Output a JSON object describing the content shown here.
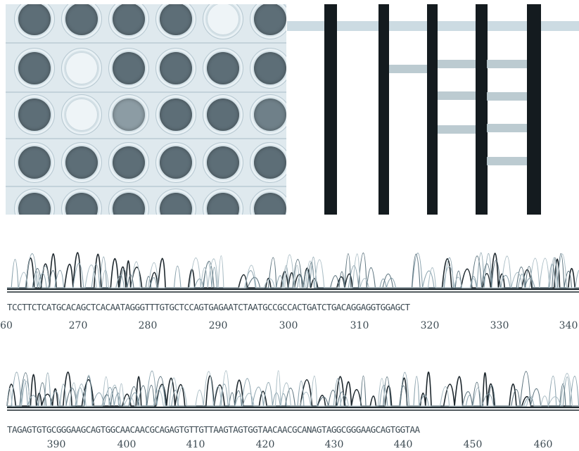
{
  "row1": {
    "sequence": "TCCTTCTCATGCACAGCTCACAATAGGGTTTGTGCTCCAGTGAGAATCTAATGCCGCCACTGATCTGACAGGAGGTGGAGCT",
    "positions": [
      "60",
      "270",
      "280",
      "290",
      "300",
      "310",
      "320",
      "330",
      "340"
    ]
  },
  "row2": {
    "sequence": "TAGAGTGTGCGGGAAGCAGTGGCAACAACGCAGAGTGTTGTTAAGTAGTGGTAACAACGCANAGTAGGCGGGAAGCAGTGGTAA",
    "positions": [
      "390",
      "400",
      "410",
      "420",
      "430",
      "440",
      "450",
      "460"
    ]
  },
  "colors": {
    "trace_dark": "#1c262c",
    "trace_light": "#8aa2ad",
    "strip": "#141b1f",
    "band": "#b8c8cf",
    "plate_bg": "#dfe9ee"
  }
}
